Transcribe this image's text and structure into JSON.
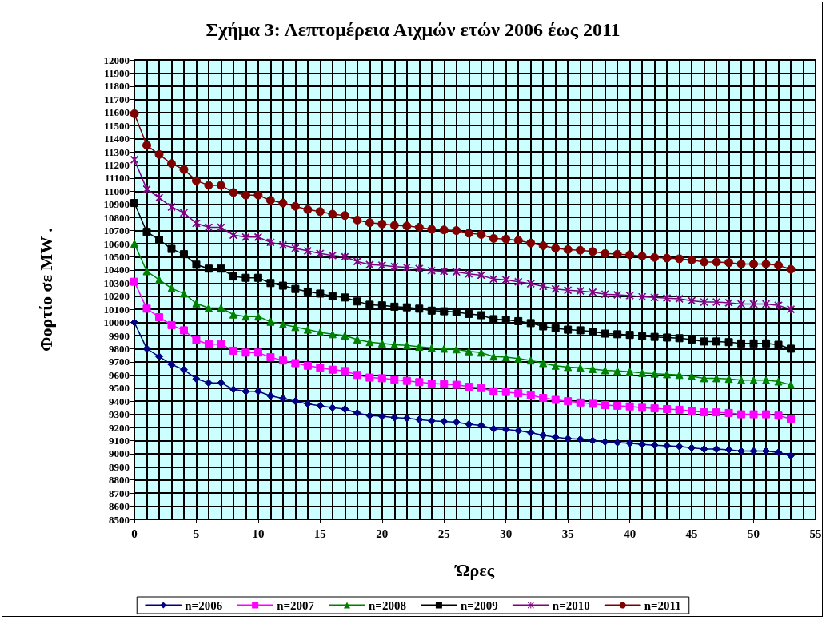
{
  "chart_data": {
    "type": "line",
    "title": "Σχήμα 3: Λεπτομέρεια Αιχμών ετών 2006 έως 2011",
    "xlabel": "Ώρες",
    "ylabel": "Φορτίο σε MW .",
    "x": [
      0,
      1,
      2,
      3,
      4,
      5,
      6,
      7,
      8,
      9,
      10,
      11,
      12,
      13,
      14,
      15,
      16,
      17,
      18,
      19,
      20,
      21,
      22,
      23,
      24,
      25,
      26,
      27,
      28,
      29,
      30,
      31,
      32,
      33,
      34,
      35,
      36,
      37,
      38,
      39,
      40,
      41,
      42,
      43,
      44,
      45,
      46,
      47,
      48,
      49,
      50,
      51,
      52,
      53
    ],
    "series": [
      {
        "name": "n=2006",
        "color": "#000080",
        "marker": "diamond",
        "values": [
          10000,
          9800,
          9740,
          9680,
          9640,
          9570,
          9540,
          9540,
          9490,
          9475,
          9475,
          9440,
          9420,
          9400,
          9380,
          9365,
          9350,
          9340,
          9310,
          9290,
          9285,
          9275,
          9270,
          9260,
          9250,
          9245,
          9240,
          9225,
          9215,
          9190,
          9185,
          9175,
          9160,
          9140,
          9125,
          9115,
          9110,
          9100,
          9090,
          9085,
          9080,
          9070,
          9065,
          9060,
          9055,
          9045,
          9035,
          9035,
          9030,
          9020,
          9020,
          9020,
          9010,
          8985
        ]
      },
      {
        "name": "n=2007",
        "color": "#ff00ff",
        "marker": "square",
        "values": [
          10310,
          10105,
          10040,
          9980,
          9940,
          9865,
          9835,
          9835,
          9785,
          9770,
          9770,
          9735,
          9710,
          9690,
          9670,
          9655,
          9640,
          9630,
          9600,
          9580,
          9575,
          9565,
          9555,
          9545,
          9535,
          9530,
          9525,
          9510,
          9500,
          9475,
          9470,
          9460,
          9445,
          9425,
          9410,
          9400,
          9390,
          9380,
          9370,
          9365,
          9360,
          9350,
          9345,
          9340,
          9335,
          9325,
          9315,
          9315,
          9310,
          9300,
          9300,
          9300,
          9290,
          9265
        ]
      },
      {
        "name": "n=2008",
        "color": "#008000",
        "marker": "triangle",
        "values": [
          10600,
          10390,
          10325,
          10260,
          10220,
          10145,
          10110,
          10110,
          10060,
          10045,
          10045,
          10005,
          9985,
          9965,
          9945,
          9925,
          9910,
          9900,
          9870,
          9850,
          9840,
          9830,
          9825,
          9815,
          9805,
          9800,
          9795,
          9780,
          9770,
          9740,
          9735,
          9725,
          9710,
          9690,
          9670,
          9660,
          9655,
          9645,
          9635,
          9630,
          9625,
          9615,
          9610,
          9605,
          9600,
          9590,
          9575,
          9575,
          9570,
          9560,
          9560,
          9560,
          9550,
          9525
        ]
      },
      {
        "name": "n=2009",
        "color": "#000000",
        "marker": "square",
        "values": [
          10910,
          10690,
          10630,
          10560,
          10520,
          10440,
          10410,
          10410,
          10350,
          10340,
          10340,
          10300,
          10280,
          10255,
          10235,
          10220,
          10200,
          10190,
          10160,
          10135,
          10130,
          10120,
          10115,
          10105,
          10090,
          10085,
          10080,
          10065,
          10055,
          10025,
          10020,
          10010,
          9995,
          9970,
          9955,
          9945,
          9940,
          9930,
          9915,
          9910,
          9905,
          9895,
          9890,
          9885,
          9880,
          9870,
          9855,
          9855,
          9850,
          9840,
          9840,
          9840,
          9830,
          9800
        ]
      },
      {
        "name": "n=2010",
        "color": "#800080",
        "marker": "cross",
        "values": [
          11240,
          11015,
          10950,
          10880,
          10835,
          10755,
          10725,
          10725,
          10665,
          10650,
          10650,
          10610,
          10590,
          10565,
          10545,
          10525,
          10510,
          10500,
          10465,
          10440,
          10435,
          10425,
          10420,
          10410,
          10395,
          10390,
          10385,
          10370,
          10360,
          10330,
          10325,
          10310,
          10295,
          10275,
          10255,
          10245,
          10240,
          10230,
          10215,
          10210,
          10205,
          10195,
          10190,
          10185,
          10180,
          10165,
          10155,
          10155,
          10150,
          10140,
          10140,
          10140,
          10130,
          10100
        ]
      },
      {
        "name": "n=2011",
        "color": "#800000",
        "marker": "circle",
        "values": [
          11590,
          11350,
          11280,
          11210,
          11165,
          11080,
          11045,
          11045,
          10990,
          10970,
          10970,
          10930,
          10910,
          10885,
          10860,
          10845,
          10825,
          10815,
          10780,
          10760,
          10750,
          10740,
          10735,
          10725,
          10710,
          10705,
          10700,
          10680,
          10670,
          10640,
          10635,
          10625,
          10605,
          10585,
          10565,
          10555,
          10550,
          10540,
          10525,
          10520,
          10515,
          10505,
          10495,
          10490,
          10485,
          10475,
          10460,
          10460,
          10455,
          10445,
          10445,
          10445,
          10435,
          10405
        ]
      }
    ],
    "xlim": [
      0,
      55
    ],
    "xticks": [
      0,
      5,
      10,
      15,
      20,
      25,
      30,
      35,
      40,
      45,
      50,
      55
    ],
    "ylim": [
      8500,
      12000
    ],
    "yticks": [
      8500,
      8600,
      8700,
      8800,
      8900,
      9000,
      9100,
      9200,
      9300,
      9400,
      9500,
      9600,
      9700,
      9800,
      9900,
      10000,
      10100,
      10200,
      10300,
      10400,
      10500,
      10600,
      10700,
      10800,
      10900,
      11000,
      11100,
      11200,
      11300,
      11400,
      11500,
      11600,
      11700,
      11800,
      11900,
      12000
    ],
    "grid": true,
    "legend": "bottom",
    "line_style": "solid"
  }
}
